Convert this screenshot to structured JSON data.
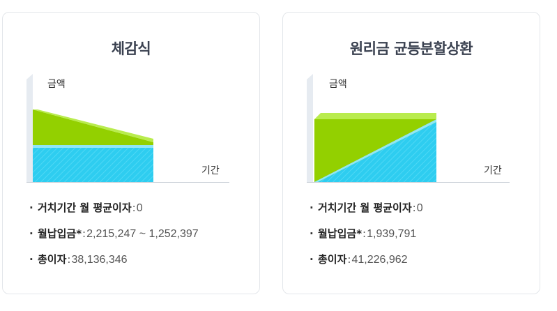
{
  "cards": [
    {
      "title": "체감식",
      "axis_amount": "금액",
      "axis_period": "기간",
      "items": [
        {
          "label": "거치기간 월 평균이자",
          "value": "0"
        },
        {
          "label": "월납입금*",
          "value": "2,215,247 ~ 1,252,397"
        },
        {
          "label": "총이자",
          "value": "38,136,346"
        }
      ]
    },
    {
      "title": "원리금 균등분할상환",
      "axis_amount": "금액",
      "axis_period": "기간",
      "items": [
        {
          "label": "거치기간 월 평균이자",
          "value": "0"
        },
        {
          "label": "월납입금*",
          "value": "1,939,791"
        },
        {
          "label": "총이자",
          "value": "41,226,962"
        }
      ]
    }
  ],
  "colors": {
    "green": "#93d000",
    "green_light": "#b9ec4e",
    "blue": "#2ecdf0",
    "blue_light": "#8fe6f8",
    "axis": "#e6ebf1"
  },
  "bullet": "·",
  "sep": ":"
}
